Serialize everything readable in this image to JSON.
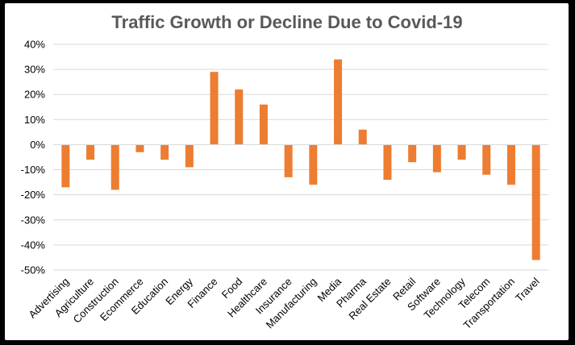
{
  "chart_data": {
    "type": "bar",
    "title": "Traffic Growth or Decline Due to Covid-19",
    "xlabel": "",
    "ylabel": "",
    "ylim": [
      -50,
      40
    ],
    "yticks": [
      40,
      30,
      20,
      10,
      0,
      -10,
      -20,
      -30,
      -40,
      -50
    ],
    "tick_suffix": "%",
    "grid": true,
    "legend": "none",
    "bar_color": "#ED7D31",
    "grid_color": "#D9D9D9",
    "categories": [
      "Advertising",
      "Agriculture",
      "Construction",
      "Ecommerce",
      "Education",
      "Energy",
      "Finance",
      "Food",
      "Healthcare",
      "Insurance",
      "Manufacturing",
      "Media",
      "Pharma",
      "Real Estate",
      "Retail",
      "Software",
      "Technology",
      "Telecom",
      "Transportation",
      "Travel"
    ],
    "values": [
      -17,
      -6,
      -18,
      -3,
      -6,
      -9,
      29,
      22,
      16,
      -13,
      -16,
      34,
      6,
      -14,
      -7,
      -11,
      -6,
      -12,
      -16,
      -46
    ]
  }
}
